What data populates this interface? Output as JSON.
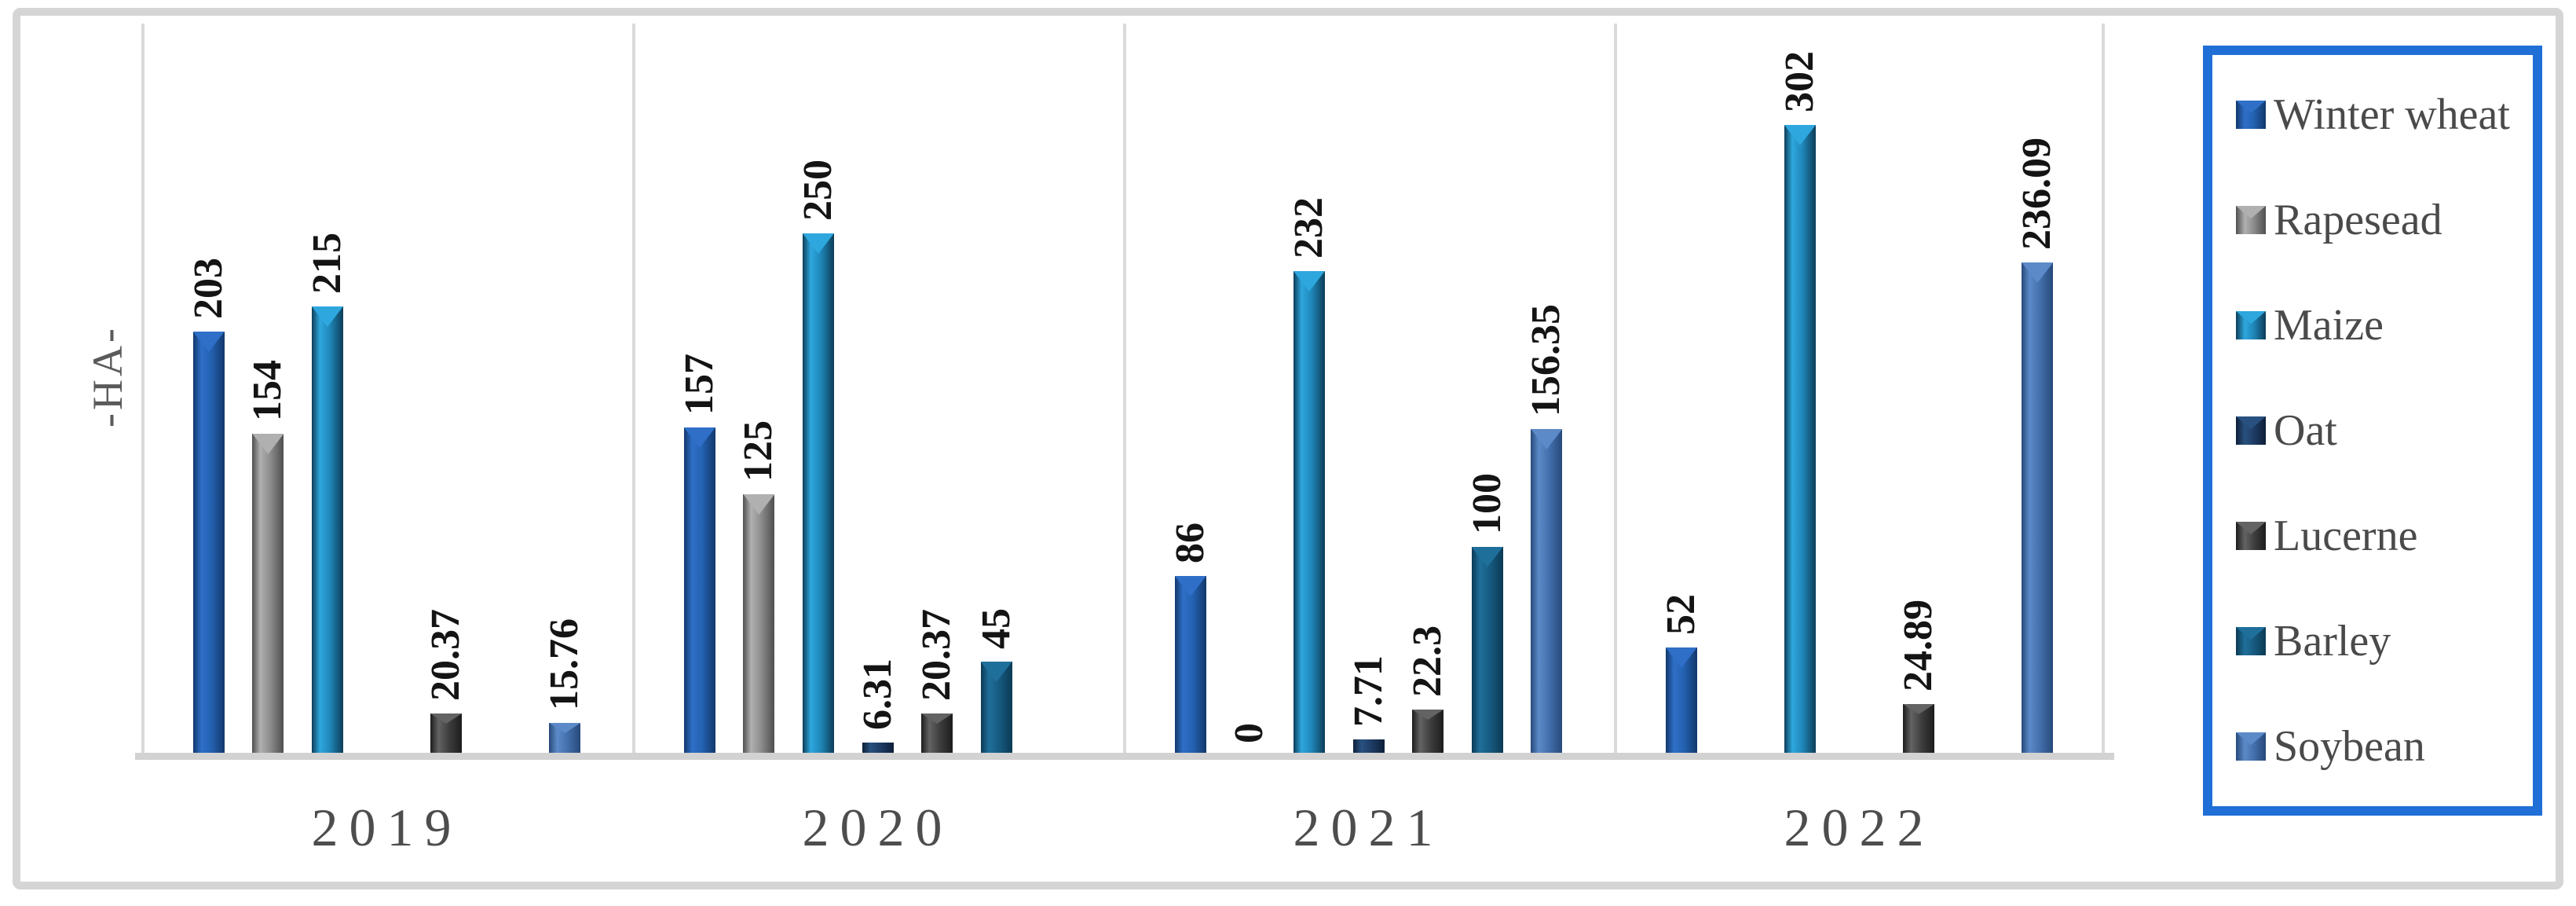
{
  "y_axis": {
    "title": "-HA-",
    "title_color": "#5a5a5a"
  },
  "x_axis": {
    "label_color": "#4d4d4d"
  },
  "style": {
    "frame_border": "#d5d5d5",
    "axis_line": "#dadada",
    "baseline": "#d2d2d2",
    "value_label_color": "#141414"
  },
  "legend": {
    "border_color": "#1f6fd6",
    "text_color": "#4a4a4a",
    "position": "right"
  },
  "chart_data": {
    "type": "bar",
    "title": "",
    "xlabel": "",
    "ylabel": "-HA-",
    "categories": [
      "2019",
      "2020",
      "2021",
      "2022"
    ],
    "series": [
      {
        "name": "Winter wheat",
        "color": "#2361b0",
        "color_light": "#2f6fc8",
        "color_dark": "#12386b",
        "values": [
          203,
          157,
          86,
          52
        ],
        "labels": [
          "203",
          "157",
          "86",
          "52"
        ]
      },
      {
        "name": "Rapesead",
        "color": "#8c8c8c",
        "color_light": "#b0b0b0",
        "color_dark": "#4f4f4f",
        "values": [
          154,
          125,
          0,
          null
        ],
        "labels": [
          "154",
          "125",
          "0",
          null
        ]
      },
      {
        "name": "Maize",
        "color": "#1f86b8",
        "color_light": "#2ea7de",
        "color_dark": "#0d3d58",
        "values": [
          215,
          250,
          232,
          302
        ],
        "labels": [
          "215",
          "250",
          "232",
          "302"
        ]
      },
      {
        "name": "Oat",
        "color": "#1e3c64",
        "color_light": "#28517f",
        "color_dark": "#0e1f38",
        "values": [
          null,
          6.31,
          7.71,
          null
        ],
        "labels": [
          null,
          "6.31",
          "7.71",
          null
        ]
      },
      {
        "name": "Lucerne",
        "color": "#3f3f3f",
        "color_light": "#636363",
        "color_dark": "#1c1c1c",
        "values": [
          20.37,
          20.37,
          22.3,
          24.89
        ],
        "labels": [
          "20.37",
          "20.37",
          "22.3",
          "24.89"
        ]
      },
      {
        "name": "Barley",
        "color": "#175a80",
        "color_light": "#1f6f9b",
        "color_dark": "#0b3a54",
        "values": [
          null,
          45,
          100,
          null
        ],
        "labels": [
          null,
          "45",
          "100",
          null
        ]
      },
      {
        "name": "Soybean",
        "color": "#4470ad",
        "color_light": "#5c8ac8",
        "color_dark": "#27497a",
        "values": [
          15.76,
          null,
          156.35,
          236.09
        ],
        "labels": [
          "15.76",
          null,
          "156.35",
          "236.09"
        ]
      }
    ],
    "ylim": [
      0,
      330
    ],
    "grid": false,
    "legend_position": "right",
    "value_labels_rotated_90": true
  }
}
